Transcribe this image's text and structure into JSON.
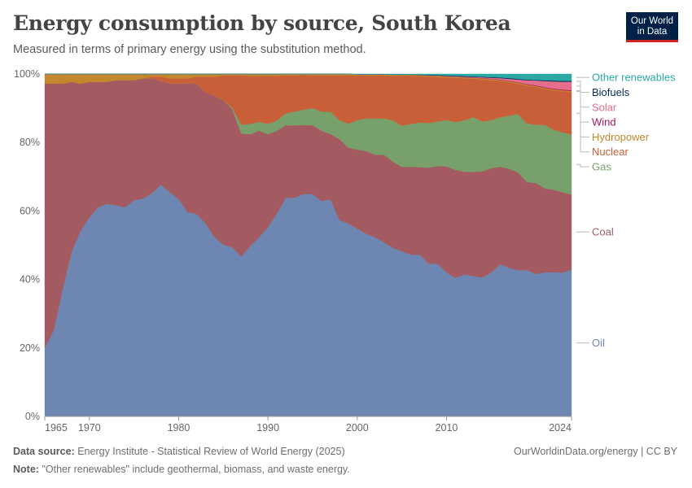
{
  "header": {
    "title": "Energy consumption by source, South Korea",
    "subtitle": "Measured in terms of primary energy using the substitution method."
  },
  "logo": {
    "line1": "Our World",
    "line2": "in Data"
  },
  "footer": {
    "source_label": "Data source:",
    "source_text": "Energy Institute - Statistical Review of World Energy (2025)",
    "note_label": "Note:",
    "note_text": "\"Other renewables\" include geothermal, biomass, and waste energy.",
    "credit": "OurWorldinData.org/energy | CC BY"
  },
  "chart_data": {
    "type": "area",
    "stacked": true,
    "stack_order": "bottom-to-top",
    "x": [
      1965,
      1966,
      1967,
      1968,
      1969,
      1970,
      1971,
      1972,
      1973,
      1974,
      1975,
      1976,
      1977,
      1978,
      1979,
      1980,
      1981,
      1982,
      1983,
      1984,
      1985,
      1986,
      1987,
      1988,
      1989,
      1990,
      1991,
      1992,
      1993,
      1994,
      1995,
      1996,
      1997,
      1998,
      1999,
      2000,
      2001,
      2002,
      2003,
      2004,
      2005,
      2006,
      2007,
      2008,
      2009,
      2010,
      2011,
      2012,
      2013,
      2014,
      2015,
      2016,
      2017,
      2018,
      2019,
      2020,
      2021,
      2022,
      2023,
      2024
    ],
    "x_ticks": [
      1965,
      1970,
      1980,
      1990,
      2000,
      2010,
      2024
    ],
    "y_ticks": [
      0,
      20,
      40,
      60,
      80,
      100
    ],
    "y_tick_labels": [
      "0%",
      "20%",
      "40%",
      "60%",
      "80%",
      "100%"
    ],
    "ylim": [
      0,
      100
    ],
    "grid": "horizontal-dashed",
    "legend": "right",
    "series": [
      {
        "name": "Oil",
        "color": "#6d87b2",
        "values": [
          20,
          25,
          37,
          48,
          54,
          58,
          61,
          62,
          61.5,
          61,
          63,
          63.5,
          65,
          67,
          65,
          63,
          59.5,
          59,
          56,
          52,
          50,
          49,
          46,
          49.5,
          52,
          55,
          59,
          63.5,
          63.5,
          64.5,
          64.5,
          62.5,
          63,
          57,
          56,
          54.5,
          53,
          52,
          50.5,
          49,
          48,
          47,
          47,
          44.5,
          44.5,
          42,
          40.5,
          41.5,
          41,
          40.5,
          42,
          44.5,
          43.5,
          42.5,
          42.5,
          41.5,
          42,
          42,
          42,
          43
        ]
      },
      {
        "name": "Coal",
        "color": "#a35a60",
        "values": [
          77,
          72,
          60,
          49.5,
          43,
          39.5,
          36.5,
          35.5,
          36.5,
          37,
          35,
          35,
          33.5,
          30,
          31.5,
          33.5,
          37.5,
          38,
          38,
          41,
          42,
          40,
          35.5,
          32.5,
          31,
          27,
          24,
          21,
          21,
          20,
          20,
          20.5,
          19,
          23.5,
          22,
          23,
          24,
          24,
          25.5,
          25,
          24.5,
          25.5,
          25.5,
          28,
          28.5,
          31,
          31.5,
          30,
          30.5,
          31,
          30.5,
          28.5,
          29,
          28.5,
          25.5,
          26.5,
          24.5,
          24,
          23.5,
          22
        ]
      },
      {
        "name": "Gas",
        "color": "#78a06a",
        "values": [
          0,
          0,
          0,
          0,
          0,
          0,
          0,
          0,
          0,
          0,
          0,
          0,
          0,
          0,
          0,
          0,
          0,
          0,
          0,
          0,
          0,
          0.5,
          2.5,
          3,
          2.5,
          3,
          3,
          3.5,
          4,
          4.5,
          5,
          5.5,
          6.5,
          5.5,
          7,
          8.5,
          9.5,
          10.5,
          10.5,
          12,
          12,
          12.5,
          13,
          13,
          13,
          13.5,
          14,
          15,
          16,
          14.5,
          14,
          14.5,
          15.5,
          17,
          17,
          17,
          18.5,
          17.5,
          17.5,
          17.5
        ]
      },
      {
        "name": "Nuclear",
        "color": "#c85f39",
        "values": [
          0,
          0,
          0,
          0,
          0,
          0,
          0,
          0,
          0,
          0,
          0,
          0,
          0.5,
          1.2,
          1.5,
          1.5,
          1.5,
          2,
          4.5,
          5.5,
          7.3,
          9.3,
          14.2,
          13.9,
          13.3,
          14,
          12.9,
          11,
          10.4,
          10,
          9.5,
          10.5,
          10.5,
          13,
          14,
          13,
          12.5,
          12.5,
          12.5,
          13,
          14.5,
          14,
          13.5,
          13.5,
          13,
          12.5,
          12.9,
          12.3,
          11.2,
          12.3,
          11.7,
          10.6,
          9.8,
          8.8,
          11,
          11,
          10.5,
          11.5,
          12,
          12.5
        ]
      },
      {
        "name": "Hydropower",
        "color": "#c4872d",
        "values": [
          2.8,
          2.8,
          2.8,
          2.3,
          2.8,
          2.3,
          2.3,
          2.3,
          1.8,
          1.8,
          1.8,
          1.3,
          0.8,
          0.8,
          1.3,
          1.3,
          1.3,
          0.8,
          0.8,
          0.8,
          0.4,
          0.4,
          0.4,
          0.6,
          0.6,
          0.5,
          0.6,
          0.4,
          0.5,
          0.3,
          0.4,
          0.4,
          0.4,
          0.4,
          0.4,
          0.3,
          0.3,
          0.3,
          0.3,
          0.3,
          0.3,
          0.3,
          0.3,
          0.3,
          0.3,
          0.3,
          0.3,
          0.3,
          0.3,
          0.3,
          0.3,
          0.3,
          0.3,
          0.3,
          0.3,
          0.3,
          0.3,
          0.3,
          0.3,
          0.3
        ]
      },
      {
        "name": "Wind",
        "color": "#a4165a",
        "values": [
          0,
          0,
          0,
          0,
          0,
          0,
          0,
          0,
          0,
          0,
          0,
          0,
          0,
          0,
          0,
          0,
          0,
          0,
          0,
          0,
          0,
          0,
          0,
          0,
          0,
          0,
          0,
          0,
          0,
          0,
          0,
          0,
          0,
          0,
          0,
          0,
          0,
          0,
          0,
          0,
          0,
          0,
          0.02,
          0.03,
          0.05,
          0.06,
          0.07,
          0.08,
          0.08,
          0.09,
          0.1,
          0.11,
          0.12,
          0.13,
          0.15,
          0.16,
          0.17,
          0.18,
          0.2,
          0.2
        ]
      },
      {
        "name": "Solar",
        "color": "#e56e8c",
        "values": [
          0,
          0,
          0,
          0,
          0,
          0,
          0,
          0,
          0,
          0,
          0,
          0,
          0,
          0,
          0,
          0,
          0,
          0,
          0,
          0,
          0,
          0,
          0,
          0,
          0,
          0,
          0,
          0,
          0,
          0,
          0,
          0,
          0,
          0,
          0,
          0,
          0,
          0,
          0,
          0,
          0,
          0,
          0.02,
          0.05,
          0.07,
          0.08,
          0.1,
          0.12,
          0.16,
          0.22,
          0.3,
          0.4,
          0.6,
          0.8,
          1.1,
          1.4,
          1.8,
          2.1,
          2.3,
          2.5
        ]
      },
      {
        "name": "Biofuels",
        "color": "#00295b",
        "values": [
          0,
          0,
          0,
          0,
          0,
          0,
          0,
          0,
          0,
          0,
          0,
          0,
          0,
          0,
          0,
          0,
          0,
          0,
          0,
          0,
          0,
          0,
          0,
          0,
          0,
          0,
          0,
          0,
          0,
          0,
          0,
          0,
          0,
          0,
          0,
          0,
          0,
          0,
          0,
          0,
          0,
          0,
          0.05,
          0.1,
          0.12,
          0.15,
          0.15,
          0.15,
          0.15,
          0.15,
          0.2,
          0.2,
          0.2,
          0.2,
          0.2,
          0.2,
          0.25,
          0.25,
          0.25,
          0.25
        ]
      },
      {
        "name": "Other renewables",
        "color": "#29a8a4",
        "values": [
          0,
          0,
          0,
          0,
          0,
          0,
          0,
          0,
          0,
          0,
          0,
          0,
          0,
          0,
          0,
          0,
          0,
          0,
          0,
          0,
          0,
          0,
          0,
          0,
          0,
          0,
          0,
          0,
          0,
          0,
          0,
          0,
          0,
          0,
          0,
          0.1,
          0.1,
          0.1,
          0.1,
          0.2,
          0.2,
          0.2,
          0.2,
          0.3,
          0.3,
          0.4,
          0.5,
          0.6,
          0.7,
          0.8,
          0.9,
          1.0,
          1.2,
          1.4,
          1.6,
          1.7,
          1.8,
          1.9,
          2.0,
          2.0
        ]
      }
    ]
  }
}
